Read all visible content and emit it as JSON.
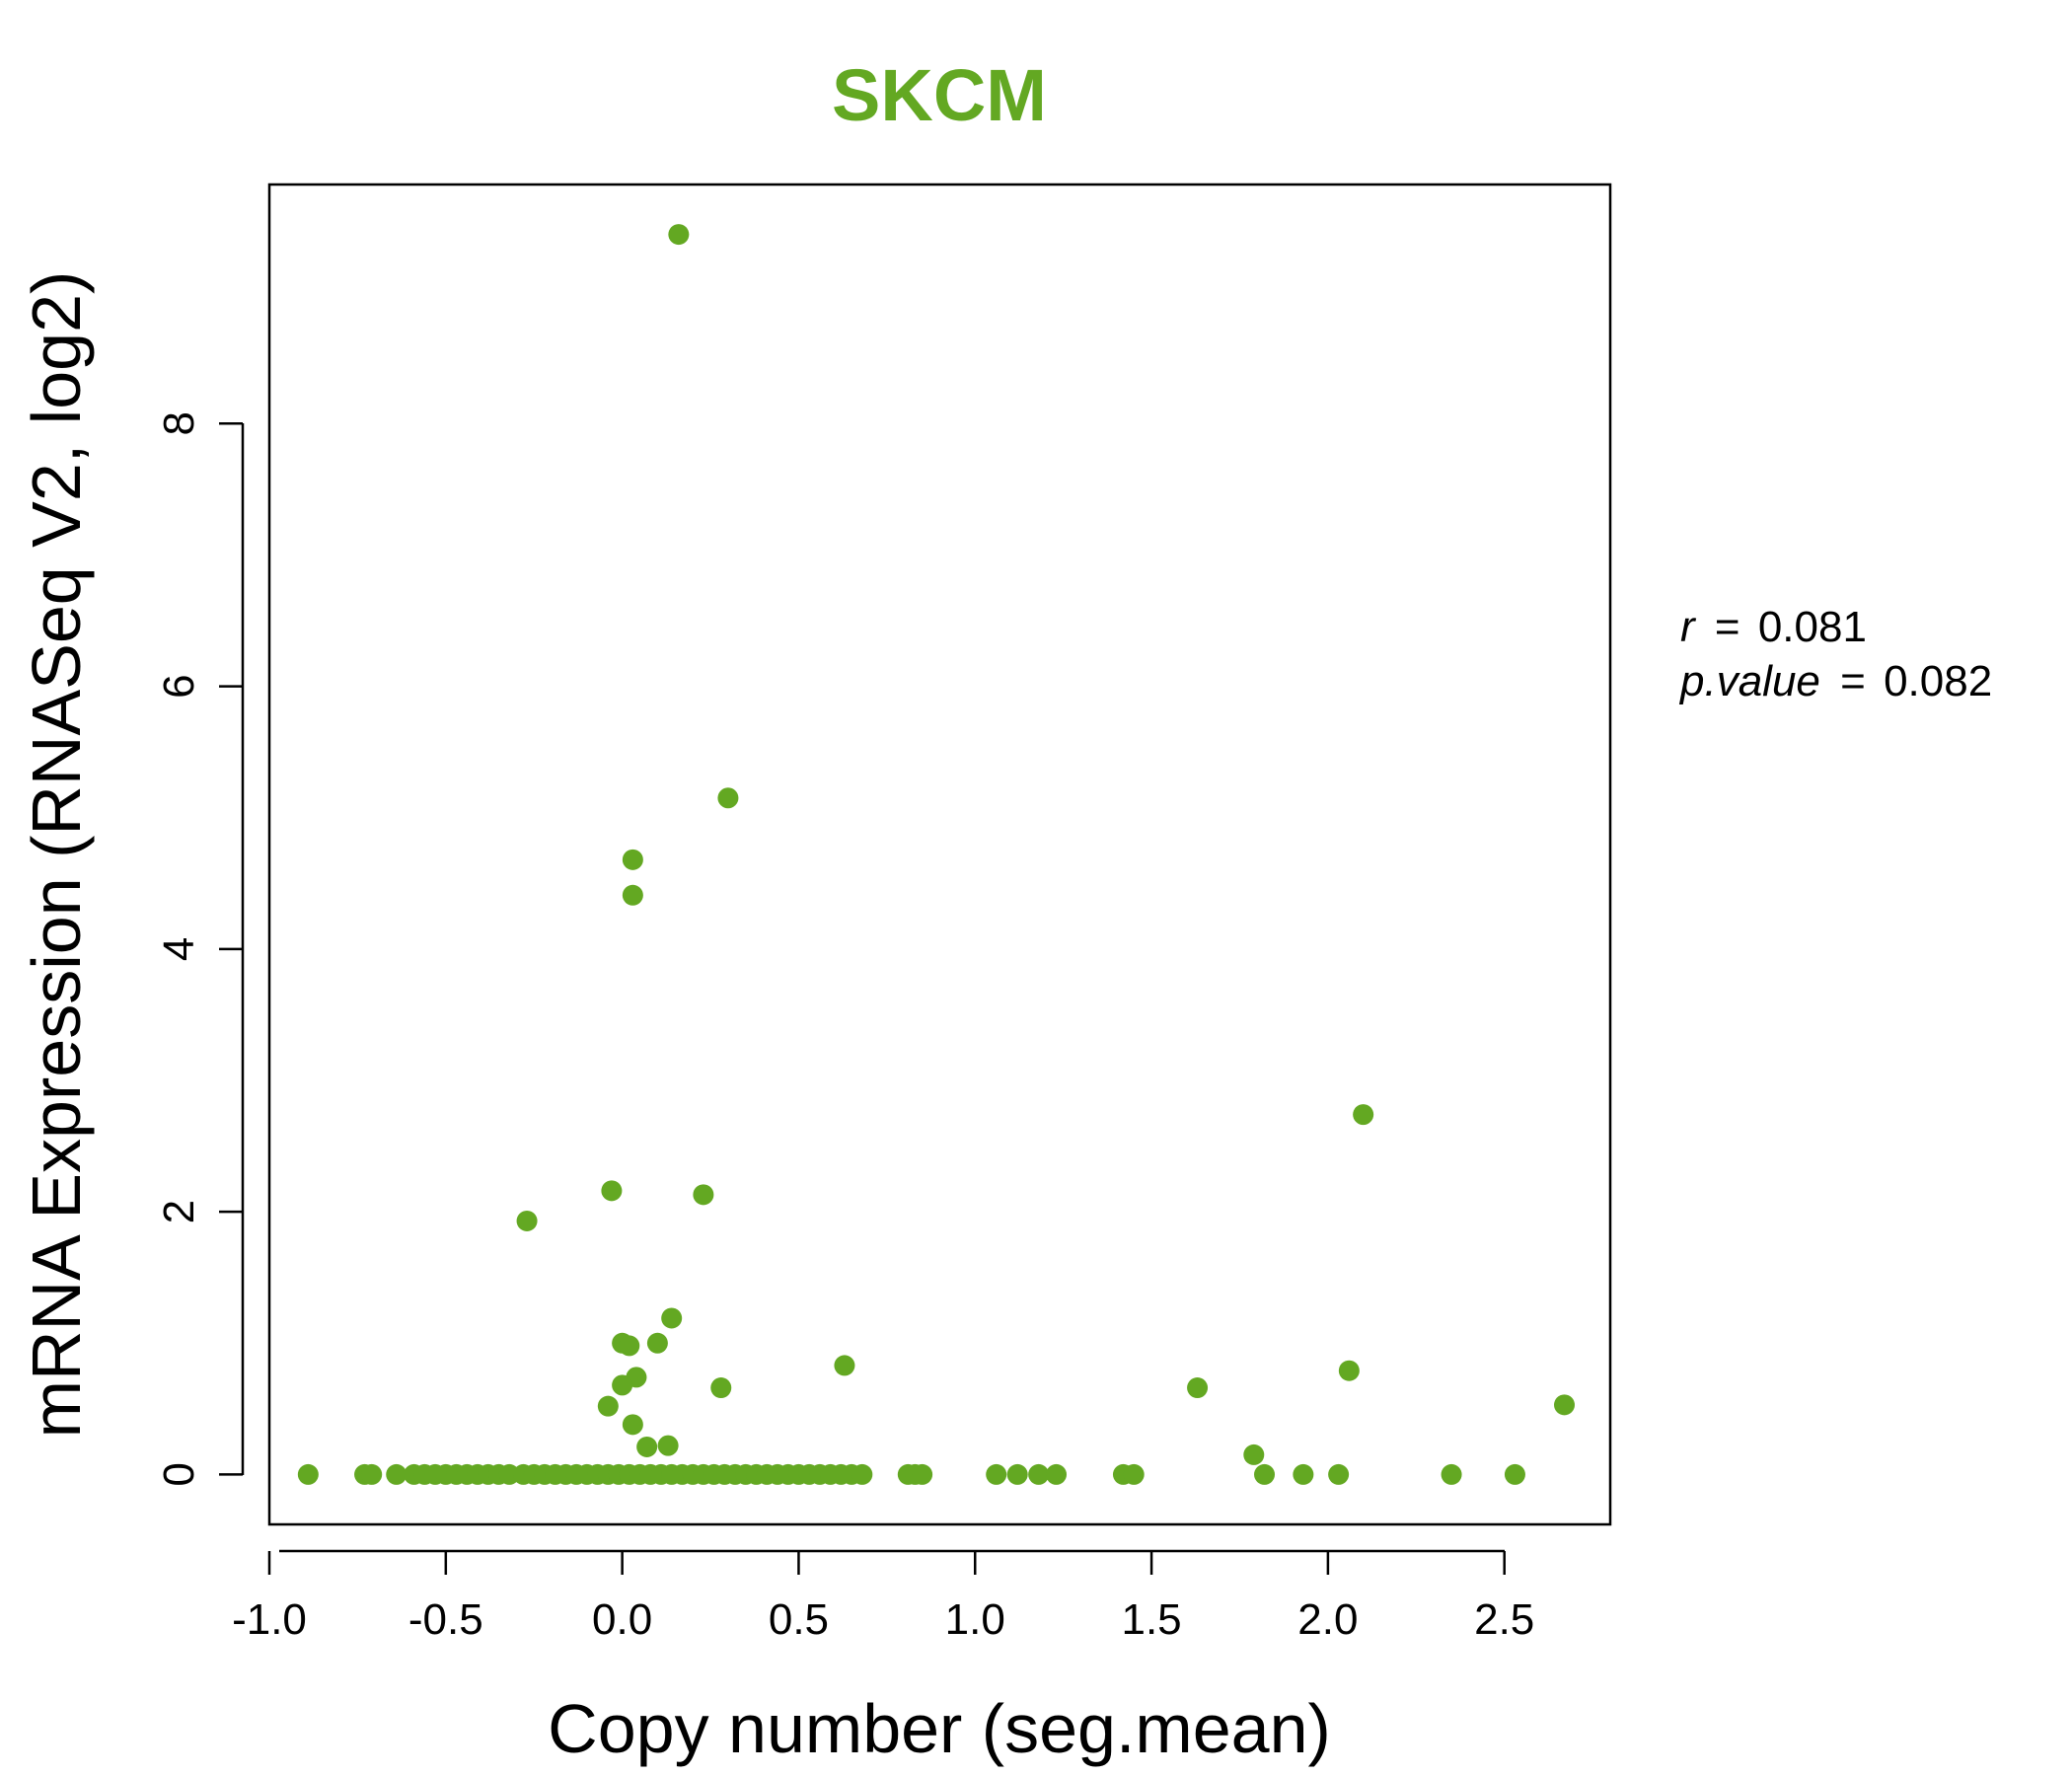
{
  "chart_data": {
    "type": "scatter",
    "title": "SKCM",
    "title_color": "#63a822",
    "point_color": "#63a822",
    "xlabel": "Copy number (seg.mean)",
    "ylabel": "mRNA Expression (RNASeq V2, log2)",
    "xlim": [
      -1.0,
      2.8
    ],
    "ylim": [
      -0.38,
      9.82
    ],
    "x_ticks": [
      -1.0,
      -0.5,
      0.0,
      0.5,
      1.0,
      1.5,
      2.0,
      2.5
    ],
    "x_tick_labels": [
      "-1.0",
      "-0.5",
      "0.0",
      "0.5",
      "1.0",
      "1.5",
      "2.0",
      "2.5"
    ],
    "y_ticks": [
      0,
      2,
      4,
      6,
      8
    ],
    "y_tick_labels": [
      "0",
      "2",
      "4",
      "6",
      "8"
    ],
    "grid": false,
    "stats": {
      "r_label": "r",
      "r_value": "0.081",
      "p_label": "p.value",
      "p_value": "0.082",
      "equals": "="
    },
    "points": [
      [
        0.16,
        9.44
      ],
      [
        0.3,
        5.15
      ],
      [
        0.03,
        4.68
      ],
      [
        0.03,
        4.41
      ],
      [
        2.1,
        2.74
      ],
      [
        -0.03,
        2.16
      ],
      [
        0.23,
        2.13
      ],
      [
        -0.27,
        1.93
      ],
      [
        0.14,
        1.19
      ],
      [
        0.0,
        1.0
      ],
      [
        0.02,
        0.98
      ],
      [
        0.1,
        1.0
      ],
      [
        0.63,
        0.83
      ],
      [
        2.06,
        0.79
      ],
      [
        0.04,
        0.74
      ],
      [
        0.0,
        0.68
      ],
      [
        0.28,
        0.66
      ],
      [
        1.63,
        0.66
      ],
      [
        2.67,
        0.53
      ],
      [
        -0.04,
        0.52
      ],
      [
        0.03,
        0.38
      ],
      [
        0.13,
        0.22
      ],
      [
        0.07,
        0.21
      ],
      [
        1.79,
        0.15
      ],
      [
        -0.89,
        0
      ],
      [
        -0.73,
        0
      ],
      [
        -0.71,
        0
      ],
      [
        -0.64,
        0
      ],
      [
        -0.59,
        0
      ],
      [
        -0.56,
        0
      ],
      [
        -0.53,
        0
      ],
      [
        -0.5,
        0
      ],
      [
        -0.47,
        0
      ],
      [
        -0.44,
        0
      ],
      [
        -0.41,
        0
      ],
      [
        -0.38,
        0
      ],
      [
        -0.35,
        0
      ],
      [
        -0.32,
        0
      ],
      [
        -0.28,
        0
      ],
      [
        -0.25,
        0
      ],
      [
        -0.22,
        0
      ],
      [
        -0.19,
        0
      ],
      [
        -0.16,
        0
      ],
      [
        -0.13,
        0
      ],
      [
        -0.1,
        0
      ],
      [
        -0.07,
        0
      ],
      [
        -0.04,
        0
      ],
      [
        -0.01,
        0
      ],
      [
        0.02,
        0
      ],
      [
        0.05,
        0
      ],
      [
        0.08,
        0
      ],
      [
        0.11,
        0
      ],
      [
        0.14,
        0
      ],
      [
        0.17,
        0
      ],
      [
        0.2,
        0
      ],
      [
        0.23,
        0
      ],
      [
        0.26,
        0
      ],
      [
        0.29,
        0
      ],
      [
        0.32,
        0
      ],
      [
        0.35,
        0
      ],
      [
        0.38,
        0
      ],
      [
        0.41,
        0
      ],
      [
        0.44,
        0
      ],
      [
        0.47,
        0
      ],
      [
        0.5,
        0
      ],
      [
        0.53,
        0
      ],
      [
        0.56,
        0
      ],
      [
        0.59,
        0
      ],
      [
        0.62,
        0
      ],
      [
        0.65,
        0
      ],
      [
        0.68,
        0
      ],
      [
        0.81,
        0
      ],
      [
        0.83,
        0
      ],
      [
        0.85,
        0
      ],
      [
        1.06,
        0
      ],
      [
        1.12,
        0
      ],
      [
        1.18,
        0
      ],
      [
        1.23,
        0
      ],
      [
        1.42,
        0
      ],
      [
        1.45,
        0
      ],
      [
        1.82,
        0
      ],
      [
        1.93,
        0
      ],
      [
        2.03,
        0
      ],
      [
        2.35,
        0
      ],
      [
        2.53,
        0
      ]
    ]
  }
}
